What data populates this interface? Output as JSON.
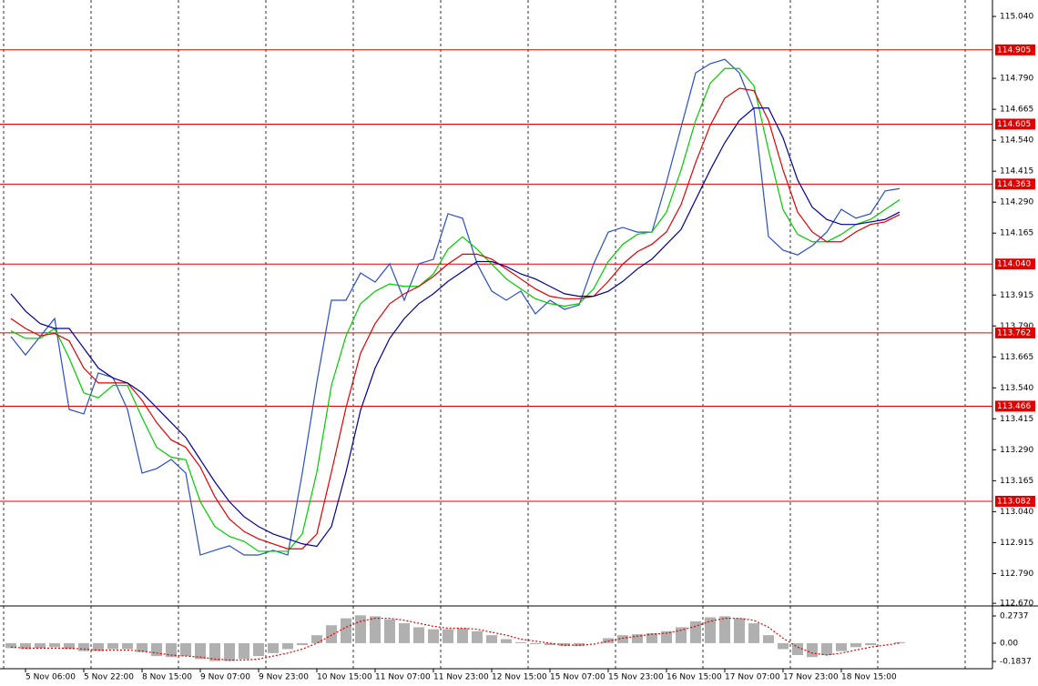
{
  "chart_data": {
    "type": "line",
    "categories": [
      null,
      "5 Nov 06:00",
      null,
      null,
      null,
      "5 Nov 22:00",
      null,
      null,
      null,
      "8 Nov 15:00",
      null,
      null,
      null,
      "9 Nov 07:00",
      null,
      null,
      null,
      "9 Nov 23:00",
      null,
      null,
      null,
      "10 Nov 15:00",
      null,
      null,
      null,
      "11 Nov 07:00",
      null,
      null,
      null,
      "11 Nov 23:00",
      null,
      null,
      null,
      "12 Nov 15:00",
      null,
      null,
      null,
      "15 Nov 07:00",
      null,
      null,
      null,
      "15 Nov 23:00",
      null,
      null,
      null,
      "16 Nov 15:00",
      null,
      null,
      null,
      "17 Nov 07:00",
      null,
      null,
      null,
      "17 Nov 23:00",
      null,
      null,
      null,
      "18 Nov 15:00",
      null,
      null,
      null,
      null
    ],
    "series": [
      {
        "color": "#2a4dc8",
        "values": [
          113.747,
          113.673,
          113.747,
          113.82,
          113.453,
          113.435,
          113.6,
          113.582,
          113.453,
          113.196,
          113.214,
          113.251,
          113.196,
          112.865,
          112.884,
          112.902,
          112.865,
          112.865,
          112.884,
          112.865,
          113.196,
          113.563,
          113.894,
          113.894,
          114.004,
          113.967,
          114.041,
          113.894,
          114.041,
          114.059,
          114.243,
          114.225,
          114.041,
          113.931,
          113.894,
          113.931,
          113.839,
          113.894,
          113.857,
          113.875,
          114.041,
          114.169,
          114.188,
          114.169,
          114.169,
          114.371,
          114.592,
          114.812,
          114.849,
          114.867,
          114.812,
          114.665,
          114.151,
          114.096,
          114.077,
          114.114,
          114.169,
          114.261,
          114.225,
          114.243,
          114.335,
          114.345
        ]
      },
      {
        "color": "#00cc00",
        "values": [
          113.77,
          113.74,
          113.74,
          113.78,
          113.66,
          113.52,
          113.5,
          113.55,
          113.55,
          113.42,
          113.3,
          113.26,
          113.25,
          113.08,
          112.98,
          112.94,
          112.92,
          112.88,
          112.88,
          112.88,
          112.95,
          113.2,
          113.55,
          113.75,
          113.88,
          113.93,
          113.96,
          113.95,
          113.95,
          114.0,
          114.1,
          114.15,
          114.1,
          114.04,
          113.98,
          113.94,
          113.9,
          113.88,
          113.87,
          113.88,
          113.94,
          114.05,
          114.12,
          114.16,
          114.17,
          114.25,
          114.42,
          114.62,
          114.77,
          114.83,
          114.83,
          114.76,
          114.5,
          114.26,
          114.16,
          114.13,
          114.13,
          114.16,
          114.2,
          114.22,
          114.26,
          114.3
        ]
      },
      {
        "color": "#e00000",
        "values": [
          113.82,
          113.78,
          113.75,
          113.76,
          113.73,
          113.62,
          113.56,
          113.56,
          113.56,
          113.49,
          113.4,
          113.33,
          113.3,
          113.22,
          113.1,
          113.01,
          112.96,
          112.93,
          112.91,
          112.89,
          112.89,
          112.95,
          113.2,
          113.46,
          113.68,
          113.8,
          113.88,
          113.92,
          113.95,
          113.99,
          114.04,
          114.08,
          114.08,
          114.06,
          114.02,
          113.98,
          113.94,
          113.91,
          113.9,
          113.9,
          113.91,
          113.97,
          114.04,
          114.09,
          114.12,
          114.17,
          114.28,
          114.45,
          114.6,
          114.71,
          114.75,
          114.74,
          114.62,
          114.42,
          114.25,
          114.17,
          114.13,
          114.13,
          114.17,
          114.2,
          114.21,
          114.24
        ]
      },
      {
        "color": "#000099",
        "values": [
          113.92,
          113.85,
          113.8,
          113.78,
          113.78,
          113.7,
          113.62,
          113.58,
          113.56,
          113.52,
          113.46,
          113.4,
          113.34,
          113.25,
          113.16,
          113.08,
          113.02,
          112.98,
          112.95,
          112.93,
          112.91,
          112.9,
          112.98,
          113.2,
          113.45,
          113.62,
          113.74,
          113.82,
          113.88,
          113.92,
          113.97,
          114.01,
          114.05,
          114.05,
          114.03,
          114.0,
          113.98,
          113.95,
          113.92,
          113.91,
          113.91,
          113.93,
          113.97,
          114.02,
          114.06,
          114.12,
          114.18,
          114.3,
          114.42,
          114.53,
          114.62,
          114.67,
          114.67,
          114.55,
          114.38,
          114.27,
          114.22,
          114.2,
          114.2,
          114.21,
          114.22,
          114.25
        ]
      }
    ],
    "ylim": [
      112.663,
      115.077
    ],
    "yticks": [
      {
        "value": 115.04,
        "label": "115.040"
      },
      {
        "value": 114.79,
        "label": "114.790"
      },
      {
        "value": 114.665,
        "label": "114.665"
      },
      {
        "value": 114.54,
        "label": "114.540"
      },
      {
        "value": 114.415,
        "label": "114.415"
      },
      {
        "value": 114.29,
        "label": "114.290"
      },
      {
        "value": 114.165,
        "label": "114.165"
      },
      {
        "value": 113.915,
        "label": "113.915"
      },
      {
        "value": 113.79,
        "label": "113.790"
      },
      {
        "value": 113.665,
        "label": "113.665"
      },
      {
        "value": 113.54,
        "label": "113.540"
      },
      {
        "value": 113.415,
        "label": "113.415"
      },
      {
        "value": 113.29,
        "label": "113.290"
      },
      {
        "value": 113.165,
        "label": "113.165"
      },
      {
        "value": 113.04,
        "label": "113.040"
      },
      {
        "value": 112.915,
        "label": "112.915"
      },
      {
        "value": 112.79,
        "label": "112.790"
      },
      {
        "value": 112.67,
        "label": "112.670"
      }
    ],
    "levels": [
      {
        "value": 114.905,
        "label": "114.905"
      },
      {
        "value": 114.605,
        "label": "114.605"
      },
      {
        "value": 114.363,
        "label": "114.363"
      },
      {
        "value": 114.04,
        "label": "114.040"
      },
      {
        "value": 113.762,
        "label": "113.762"
      },
      {
        "value": 113.466,
        "label": "113.466"
      },
      {
        "value": 113.082,
        "label": "113.082"
      }
    ],
    "level_color": "#e00000",
    "indicator": {
      "type": "bar",
      "color": "#b0b0b0",
      "signal_color": "#e00000",
      "values": [
        -0.05,
        -0.06,
        -0.05,
        -0.04,
        -0.06,
        -0.08,
        -0.08,
        -0.06,
        -0.06,
        -0.09,
        -0.13,
        -0.14,
        -0.13,
        -0.16,
        -0.18,
        -0.18,
        -0.16,
        -0.13,
        -0.1,
        -0.06,
        -0.02,
        0.08,
        0.18,
        0.25,
        0.28,
        0.27,
        0.24,
        0.2,
        0.16,
        0.14,
        0.14,
        0.15,
        0.12,
        0.08,
        0.04,
        0.01,
        -0.01,
        -0.02,
        -0.03,
        -0.03,
        0.0,
        0.05,
        0.08,
        0.09,
        0.1,
        0.12,
        0.16,
        0.22,
        0.26,
        0.27,
        0.25,
        0.2,
        0.08,
        -0.06,
        -0.12,
        -0.14,
        -0.12,
        -0.08,
        -0.04,
        -0.02,
        0.0,
        0.01
      ],
      "signal": [
        -0.04,
        -0.05,
        -0.05,
        -0.05,
        -0.05,
        -0.06,
        -0.07,
        -0.07,
        -0.07,
        -0.08,
        -0.1,
        -0.12,
        -0.13,
        -0.14,
        -0.16,
        -0.17,
        -0.17,
        -0.16,
        -0.13,
        -0.1,
        -0.06,
        0.0,
        0.08,
        0.16,
        0.22,
        0.25,
        0.25,
        0.23,
        0.2,
        0.17,
        0.15,
        0.15,
        0.14,
        0.11,
        0.08,
        0.04,
        0.02,
        0.0,
        -0.02,
        -0.02,
        -0.01,
        0.02,
        0.05,
        0.07,
        0.09,
        0.1,
        0.13,
        0.17,
        0.22,
        0.25,
        0.25,
        0.23,
        0.16,
        0.05,
        -0.04,
        -0.1,
        -0.12,
        -0.1,
        -0.07,
        -0.04,
        -0.02,
        0.0
      ],
      "ylim": [
        -0.257,
        0.356
      ],
      "yticks": [
        {
          "value": 0.2737,
          "label": "0.2737"
        },
        {
          "value": 0,
          "label": "0.00"
        },
        {
          "value": -0.1837,
          "label": "-0.1837"
        }
      ]
    }
  }
}
